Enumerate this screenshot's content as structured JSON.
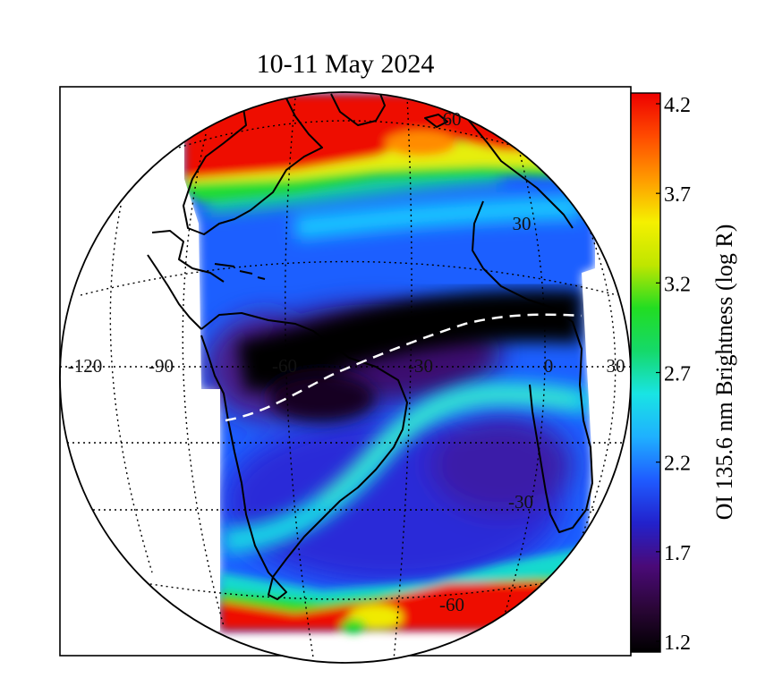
{
  "title": "10-11 May 2024",
  "colorbar": {
    "label": "OI 135.6 nm Brightness (log R)",
    "ticks": [
      "4.2",
      "3.7",
      "3.2",
      "2.7",
      "2.2",
      "1.7",
      "1.2"
    ],
    "range": [
      1.2,
      4.2
    ],
    "colormap": [
      "#000000",
      "#2a0636",
      "#4a0a78",
      "#2222cc",
      "#1f5bff",
      "#1fb0ff",
      "#19e4e4",
      "#15d96a",
      "#22dd22",
      "#bfe600",
      "#f5f000",
      "#ff9a00",
      "#ff4a00",
      "#ee0000"
    ]
  },
  "map": {
    "projection": "orthographic",
    "longitude_labels": [
      "-120",
      "-90",
      "-60",
      "-30",
      "0",
      "30"
    ],
    "latitude_labels": [
      "60",
      "30",
      "-30",
      "-60"
    ],
    "equator_label": "0",
    "magnetic_equator": "dashed-white",
    "features": [
      "North America",
      "South America",
      "Africa",
      "Europe",
      "Caribbean"
    ]
  }
}
